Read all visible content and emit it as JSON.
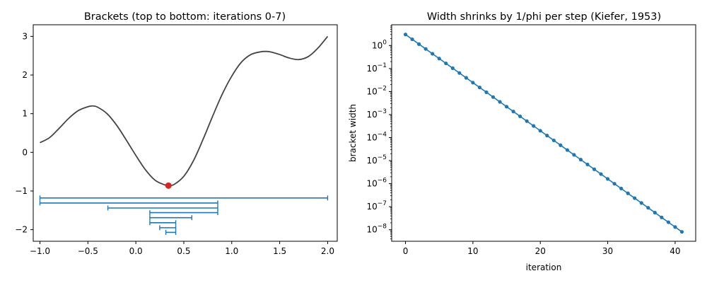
{
  "chart_data": [
    {
      "type": "line",
      "title": "Brackets (top to bottom: iterations 0-7)",
      "xlabel": "",
      "ylabel": "",
      "xlim": [
        -1.07,
        2.1
      ],
      "ylim": [
        -2.3,
        3.3
      ],
      "x_ticks": [
        -1.0,
        -0.5,
        0.0,
        0.5,
        1.0,
        1.5,
        2.0
      ],
      "x_tick_labels": [
        "−1.0",
        "−0.5",
        "0.0",
        "0.5",
        "1.0",
        "1.5",
        "2.0"
      ],
      "y_ticks": [
        -2,
        -1,
        0,
        1,
        2,
        3
      ],
      "y_tick_labels": [
        "−2",
        "−1",
        "0",
        "1",
        "2",
        "3"
      ],
      "grid": false,
      "curve": {
        "color": "#444444",
        "x": [
          -1.0,
          -0.9,
          -0.8,
          -0.7,
          -0.6,
          -0.5,
          -0.45,
          -0.4,
          -0.3,
          -0.2,
          -0.1,
          0.0,
          0.1,
          0.2,
          0.3,
          0.35,
          0.4,
          0.5,
          0.6,
          0.7,
          0.8,
          0.9,
          1.0,
          1.1,
          1.2,
          1.3,
          1.35,
          1.4,
          1.5,
          1.6,
          1.7,
          1.8,
          1.9,
          2.0
        ],
        "y": [
          0.25,
          0.38,
          0.62,
          0.88,
          1.08,
          1.18,
          1.2,
          1.17,
          1.0,
          0.7,
          0.32,
          -0.08,
          -0.45,
          -0.72,
          -0.84,
          -0.86,
          -0.83,
          -0.62,
          -0.22,
          0.33,
          0.93,
          1.5,
          1.97,
          2.33,
          2.53,
          2.6,
          2.61,
          2.6,
          2.53,
          2.44,
          2.4,
          2.48,
          2.7,
          3.0
        ]
      },
      "minimum_marker": {
        "x": 0.34,
        "y": -0.86,
        "color": "#d62728"
      },
      "brackets": {
        "color": "#1f77b4",
        "items": [
          {
            "iteration": 0,
            "a": -1.0,
            "b": 2.0,
            "y": -1.18
          },
          {
            "iteration": 1,
            "a": -1.0,
            "b": 0.854,
            "y": -1.31
          },
          {
            "iteration": 2,
            "a": -0.292,
            "b": 0.854,
            "y": -1.44
          },
          {
            "iteration": 3,
            "a": 0.146,
            "b": 0.854,
            "y": -1.56
          },
          {
            "iteration": 4,
            "a": 0.146,
            "b": 0.584,
            "y": -1.69
          },
          {
            "iteration": 5,
            "a": 0.146,
            "b": 0.416,
            "y": -1.82
          },
          {
            "iteration": 6,
            "a": 0.249,
            "b": 0.416,
            "y": -1.95
          },
          {
            "iteration": 7,
            "a": 0.313,
            "b": 0.416,
            "y": -2.07
          }
        ]
      }
    },
    {
      "type": "line",
      "title": "Width shrinks by 1/phi per step (Kiefer, 1953)",
      "xlabel": "iteration",
      "ylabel": "bracket width",
      "y_scale": "log",
      "xlim": [
        -2.05,
        43.05
      ],
      "ylim_log10": [
        -8.5,
        0.9
      ],
      "x_ticks": [
        0,
        10,
        20,
        30,
        40
      ],
      "x_tick_labels": [
        "0",
        "10",
        "20",
        "30",
        "40"
      ],
      "y_tick_exponents": [
        -8,
        -7,
        -6,
        -5,
        -4,
        -3,
        -2,
        -1,
        0
      ],
      "y_tick_base": "10",
      "grid": false,
      "series": [
        {
          "color": "#1f77b4",
          "marker": "circle",
          "x_start": 0,
          "x_end": 41,
          "y_start": 3.0,
          "ratio": 0.6180339887
        }
      ]
    }
  ]
}
